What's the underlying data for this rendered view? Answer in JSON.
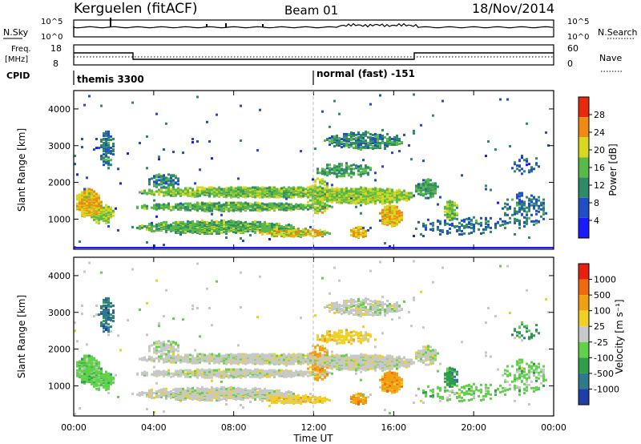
{
  "header": {
    "station": "Kerguelen (fitACF)",
    "beam": "Beam 01",
    "date": "18/Nov/2014"
  },
  "top_panels": {
    "nsky": {
      "label": "N.Sky",
      "right_label": "N.Search",
      "ticks_left": [
        "10^5",
        "10^0"
      ],
      "ticks_right": [
        "10^5",
        "10^0"
      ]
    },
    "freq": {
      "label_line1": "Freq.",
      "label_line2": "[MHz]",
      "right_label": "Nave",
      "ticks_left": [
        "18",
        "8"
      ],
      "ticks_right": [
        "60",
        "0"
      ]
    },
    "cpid": {
      "label": "CPID",
      "entries": [
        {
          "text": "themis 3300",
          "start_hour": 0
        },
        {
          "text": "normal (fast) -151",
          "start_hour": 12
        }
      ]
    }
  },
  "chart_data": [
    {
      "type": "heatmap",
      "ylabel": "Slant Range [km]",
      "yticks": [
        "4000",
        "3000",
        "2000",
        "1000"
      ],
      "ylim": [
        180,
        4500
      ],
      "colorbar": {
        "label": "Power [dB]",
        "ticks": [
          "28",
          "24",
          "20",
          "16",
          "12",
          "8",
          "4"
        ],
        "range": [
          0,
          30
        ],
        "colors": [
          "#1a1aff",
          "#1f4fc8",
          "#2f8a66",
          "#59b949",
          "#d8d81e",
          "#f08a12",
          "#e82a0c"
        ]
      }
    },
    {
      "type": "heatmap",
      "ylabel": "Slant Range [km]",
      "yticks": [
        "4000",
        "3000",
        "2000",
        "1000"
      ],
      "ylim": [
        180,
        4500
      ],
      "xlabel": "Time UT",
      "xticks": [
        "00:00",
        "04:00",
        "08:00",
        "12:00",
        "16:00",
        "20:00",
        "00:00"
      ],
      "xlim_hours": [
        0,
        24
      ],
      "colorbar": {
        "label": "Velocity [m s⁻¹]",
        "ticks": [
          "1000",
          "500",
          "100",
          "25",
          "-25",
          "-100",
          "-500",
          "-1000"
        ],
        "colors": [
          "#1e3fa8",
          "#2f7a8a",
          "#2f9d4a",
          "#5fd24a",
          "#c8c8c8",
          "#f0d020",
          "#f0a010",
          "#f06a10",
          "#e82010"
        ]
      }
    }
  ]
}
